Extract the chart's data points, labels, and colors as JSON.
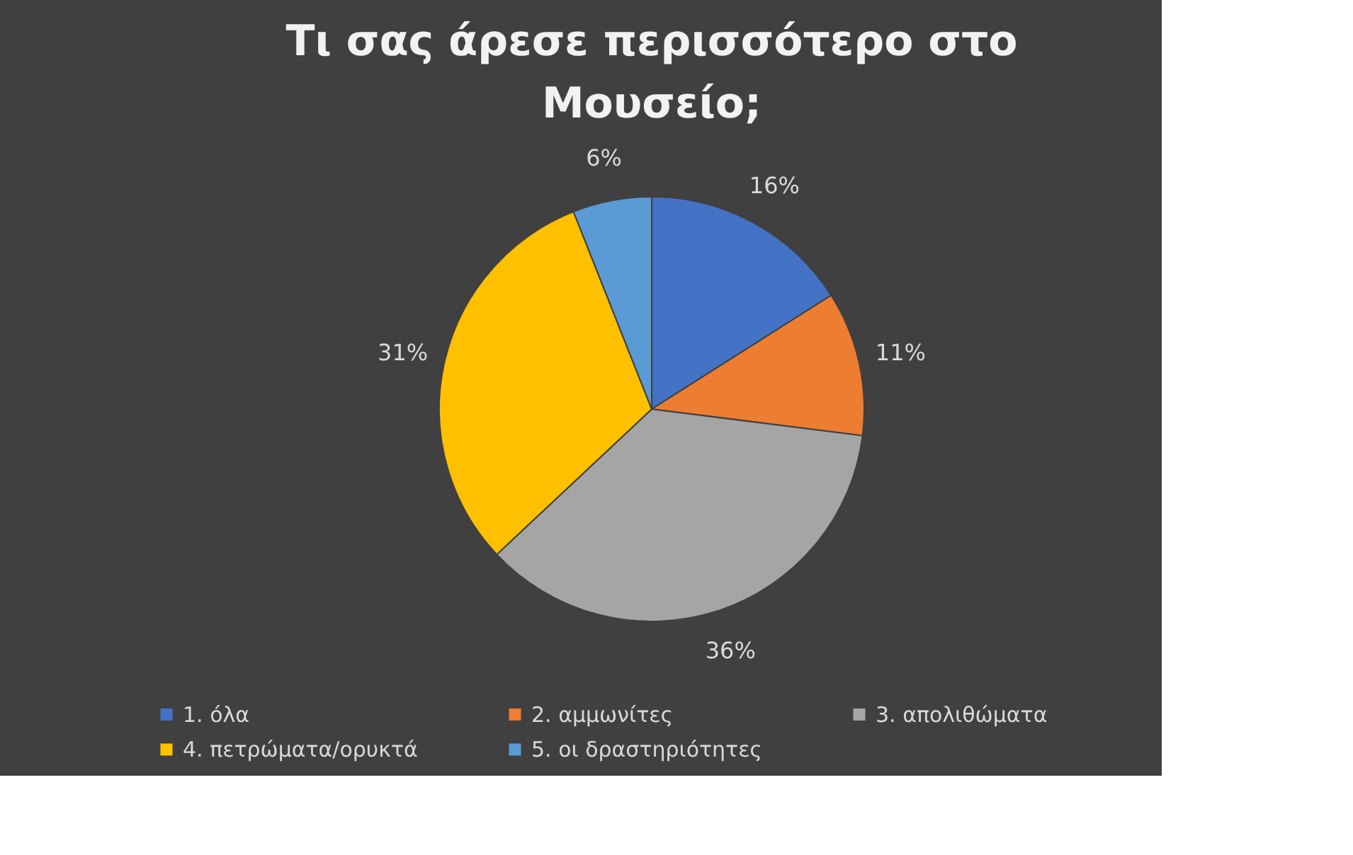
{
  "chart_data": {
    "type": "pie",
    "title": [
      "Τι σας άρεσε περισσότερο στο",
      "Μουσείο;"
    ],
    "categories": [
      "1. όλα",
      "2. αμμωνίτες",
      "3. απολιθώματα",
      "4. πετρώματα/ορυκτά",
      "5. οι δραστηριότητες"
    ],
    "values": [
      16,
      11,
      36,
      31,
      6
    ],
    "colors": [
      "#4472c4",
      "#ed7d31",
      "#a5a5a5",
      "#ffc000",
      "#5b9bd5"
    ],
    "value_labels": [
      "16%",
      "11%",
      "36%",
      "31%",
      "6%"
    ],
    "legend": "bottom"
  }
}
